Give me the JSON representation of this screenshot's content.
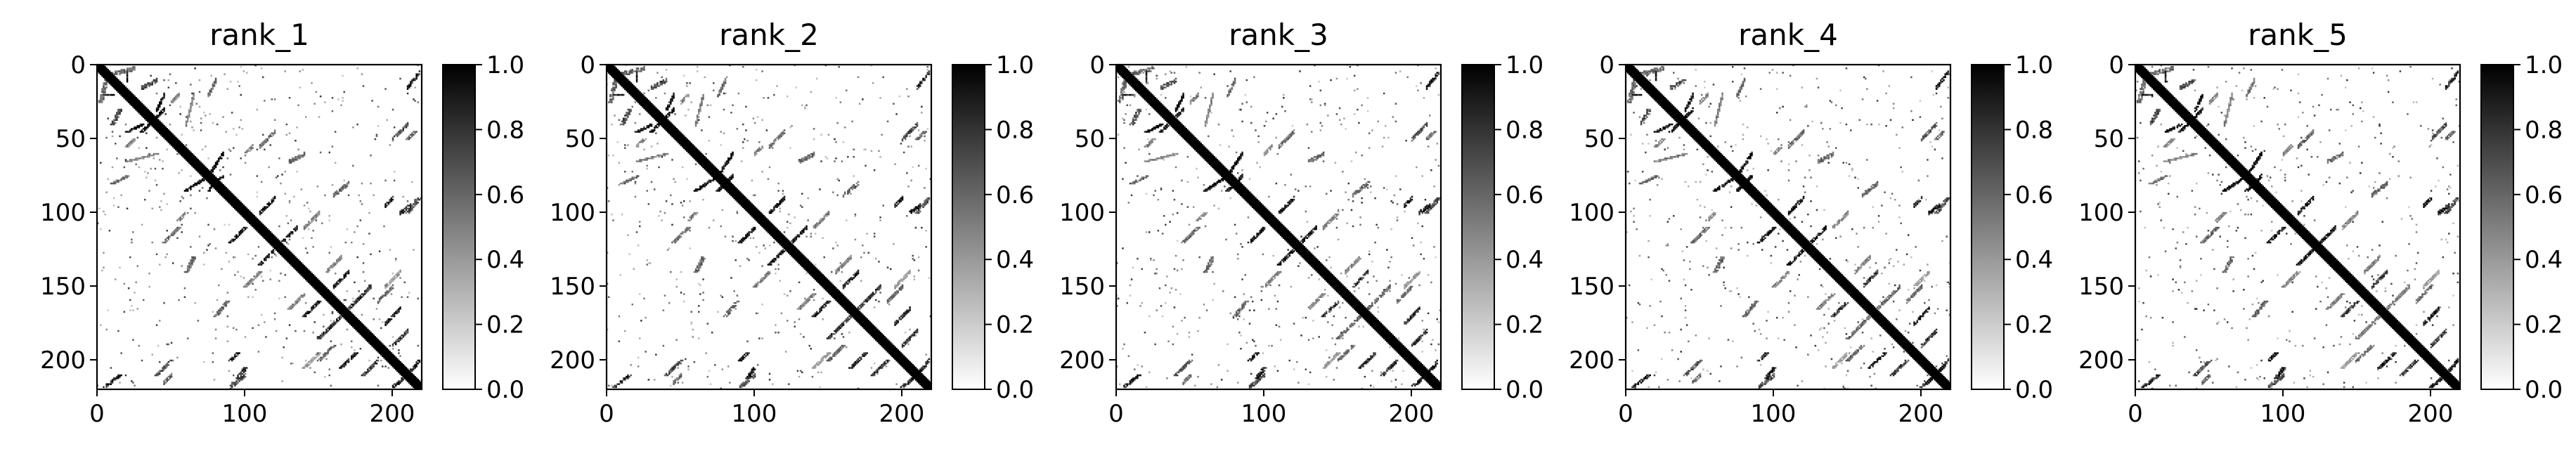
{
  "figure": {
    "background": "#ffffff"
  },
  "chart_data": [
    {
      "type": "heatmap",
      "title": "rank_1",
      "x_ticks": [
        0,
        100,
        200
      ],
      "y_ticks": [
        0,
        50,
        100,
        150,
        200
      ],
      "xlim": [
        0,
        220
      ],
      "ylim": [
        220,
        0
      ],
      "colorbar": {
        "range": [
          0,
          1
        ],
        "ticks": [
          "0.0",
          "0.2",
          "0.4",
          "0.6",
          "0.8",
          "1.0"
        ],
        "cmap": "Greys"
      },
      "n_residues": 220,
      "contacts": {
        "diagonal_width": 4,
        "segments": [
          [
            5,
            10,
            20,
            20,
            1.0
          ],
          [
            20,
            30,
            40,
            45,
            1.0
          ],
          [
            30,
            40,
            35,
            45,
            1.0
          ],
          [
            60,
            75,
            75,
            85,
            1.0
          ],
          [
            75,
            80,
            80,
            85,
            1.0
          ],
          [
            90,
            100,
            110,
            120,
            1.0
          ],
          [
            110,
            120,
            125,
            135,
            1.0
          ],
          [
            140,
            150,
            160,
            170,
            0.9
          ],
          [
            150,
            165,
            170,
            185,
            0.8
          ],
          [
            165,
            175,
            195,
            205,
            0.9
          ],
          [
            180,
            190,
            200,
            210,
            0.8
          ],
          [
            200,
            210,
            210,
            218,
            0.9
          ],
          [
            5,
            15,
            210,
            218,
            0.9
          ],
          [
            40,
            50,
            200,
            210,
            0.7
          ],
          [
            95,
            100,
            205,
            212,
            0.9
          ],
          [
            80,
            88,
            160,
            170,
            0.6
          ],
          [
            90,
            95,
            195,
            200,
            0.9
          ],
          [
            45,
            55,
            110,
            120,
            0.6
          ],
          [
            60,
            65,
            130,
            140,
            0.6
          ],
          [
            20,
            40,
            60,
            65,
            0.5
          ],
          [
            10,
            20,
            75,
            80,
            0.6
          ],
          [
            100,
            110,
            140,
            150,
            0.5
          ],
          [
            130,
            140,
            155,
            165,
            0.5
          ],
          [
            150,
            160,
            190,
            200,
            0.6
          ],
          [
            140,
            150,
            195,
            205,
            0.4
          ],
          [
            20,
            25,
            50,
            55,
            0.5
          ],
          [
            55,
            60,
            100,
            105,
            0.5
          ],
          [
            10,
            15,
            30,
            40,
            0.7
          ],
          [
            2,
            6,
            10,
            25,
            0.6
          ],
          [
            210,
            215,
            45,
            50,
            0.6
          ],
          [
            210,
            218,
            90,
            100,
            0.7
          ]
        ]
      }
    },
    {
      "type": "heatmap",
      "title": "rank_2",
      "x_ticks": [
        0,
        100,
        200
      ],
      "y_ticks": [
        0,
        50,
        100,
        150,
        200
      ],
      "xlim": [
        0,
        220
      ],
      "ylim": [
        220,
        0
      ],
      "colorbar": {
        "range": [
          0,
          1
        ],
        "ticks": [
          "0.0",
          "0.2",
          "0.4",
          "0.6",
          "0.8",
          "1.0"
        ],
        "cmap": "Greys"
      },
      "n_residues": 220,
      "contacts": {
        "diagonal_width": 4,
        "segments": [
          [
            5,
            10,
            20,
            20,
            1.0
          ],
          [
            20,
            30,
            40,
            45,
            1.0
          ],
          [
            30,
            40,
            35,
            45,
            1.0
          ],
          [
            60,
            75,
            75,
            85,
            1.0
          ],
          [
            75,
            80,
            80,
            85,
            1.0
          ],
          [
            90,
            100,
            110,
            120,
            1.0
          ],
          [
            110,
            120,
            125,
            135,
            1.0
          ],
          [
            140,
            150,
            160,
            170,
            0.9
          ],
          [
            150,
            165,
            170,
            185,
            0.8
          ],
          [
            165,
            175,
            195,
            205,
            0.9
          ],
          [
            180,
            190,
            200,
            210,
            0.8
          ],
          [
            200,
            210,
            210,
            218,
            0.9
          ],
          [
            5,
            15,
            210,
            218,
            0.9
          ],
          [
            40,
            50,
            200,
            210,
            0.7
          ],
          [
            95,
            100,
            205,
            212,
            0.9
          ],
          [
            80,
            88,
            160,
            170,
            0.6
          ],
          [
            90,
            95,
            195,
            200,
            0.9
          ],
          [
            45,
            55,
            110,
            120,
            0.6
          ],
          [
            60,
            65,
            130,
            140,
            0.6
          ],
          [
            20,
            40,
            60,
            65,
            0.5
          ],
          [
            10,
            20,
            75,
            80,
            0.6
          ],
          [
            100,
            110,
            140,
            150,
            0.5
          ],
          [
            130,
            140,
            155,
            165,
            0.5
          ],
          [
            150,
            160,
            190,
            200,
            0.6
          ],
          [
            140,
            150,
            195,
            205,
            0.4
          ],
          [
            20,
            25,
            50,
            55,
            0.5
          ],
          [
            55,
            60,
            100,
            105,
            0.5
          ],
          [
            10,
            15,
            30,
            40,
            0.7
          ],
          [
            2,
            6,
            10,
            25,
            0.6
          ],
          [
            210,
            215,
            45,
            50,
            0.6
          ],
          [
            210,
            218,
            90,
            100,
            0.7
          ]
        ]
      }
    },
    {
      "type": "heatmap",
      "title": "rank_3",
      "x_ticks": [
        0,
        100,
        200
      ],
      "y_ticks": [
        0,
        50,
        100,
        150,
        200
      ],
      "xlim": [
        0,
        220
      ],
      "ylim": [
        220,
        0
      ],
      "colorbar": {
        "range": [
          0,
          1
        ],
        "ticks": [
          "0.0",
          "0.2",
          "0.4",
          "0.6",
          "0.8",
          "1.0"
        ],
        "cmap": "Greys"
      },
      "n_residues": 220,
      "contacts": {
        "diagonal_width": 4,
        "segments": [
          [
            5,
            10,
            20,
            20,
            1.0
          ],
          [
            20,
            30,
            40,
            45,
            1.0
          ],
          [
            30,
            40,
            35,
            45,
            1.0
          ],
          [
            60,
            75,
            75,
            85,
            1.0
          ],
          [
            75,
            80,
            80,
            85,
            1.0
          ],
          [
            90,
            100,
            110,
            120,
            1.0
          ],
          [
            110,
            120,
            125,
            135,
            1.0
          ],
          [
            140,
            150,
            160,
            170,
            0.8
          ],
          [
            150,
            165,
            170,
            185,
            0.6
          ],
          [
            165,
            175,
            195,
            205,
            0.9
          ],
          [
            180,
            190,
            200,
            210,
            0.8
          ],
          [
            200,
            210,
            210,
            218,
            0.9
          ],
          [
            5,
            15,
            210,
            218,
            0.9
          ],
          [
            40,
            50,
            200,
            210,
            0.7
          ],
          [
            95,
            100,
            205,
            212,
            0.9
          ],
          [
            80,
            88,
            160,
            170,
            0.6
          ],
          [
            90,
            95,
            195,
            200,
            0.9
          ],
          [
            45,
            55,
            110,
            120,
            0.6
          ],
          [
            60,
            65,
            130,
            140,
            0.6
          ],
          [
            20,
            40,
            60,
            65,
            0.5
          ],
          [
            10,
            20,
            75,
            80,
            0.6
          ],
          [
            100,
            110,
            140,
            150,
            0.5
          ],
          [
            130,
            140,
            155,
            165,
            0.5
          ],
          [
            150,
            160,
            190,
            200,
            0.6
          ],
          [
            140,
            150,
            195,
            205,
            0.4
          ],
          [
            20,
            25,
            50,
            55,
            0.5
          ],
          [
            55,
            60,
            100,
            105,
            0.5
          ],
          [
            10,
            15,
            30,
            40,
            0.7
          ],
          [
            2,
            6,
            10,
            25,
            0.6
          ],
          [
            210,
            215,
            45,
            50,
            0.6
          ],
          [
            210,
            218,
            90,
            100,
            0.7
          ]
        ]
      }
    },
    {
      "type": "heatmap",
      "title": "rank_4",
      "x_ticks": [
        0,
        100,
        200
      ],
      "y_ticks": [
        0,
        50,
        100,
        150,
        200
      ],
      "xlim": [
        0,
        220
      ],
      "ylim": [
        220,
        0
      ],
      "colorbar": {
        "range": [
          0,
          1
        ],
        "ticks": [
          "0.0",
          "0.2",
          "0.4",
          "0.6",
          "0.8",
          "1.0"
        ],
        "cmap": "Greys"
      },
      "n_residues": 220,
      "contacts": {
        "diagonal_width": 4,
        "segments": [
          [
            5,
            10,
            20,
            20,
            1.0
          ],
          [
            20,
            30,
            40,
            45,
            1.0
          ],
          [
            30,
            40,
            35,
            45,
            1.0
          ],
          [
            60,
            75,
            75,
            85,
            1.0
          ],
          [
            75,
            80,
            80,
            85,
            1.0
          ],
          [
            90,
            100,
            110,
            120,
            1.0
          ],
          [
            110,
            120,
            125,
            135,
            1.0
          ],
          [
            140,
            150,
            160,
            170,
            0.8
          ],
          [
            150,
            165,
            170,
            185,
            0.6
          ],
          [
            165,
            175,
            195,
            205,
            0.9
          ],
          [
            180,
            190,
            200,
            210,
            0.8
          ],
          [
            200,
            210,
            210,
            218,
            0.9
          ],
          [
            5,
            15,
            210,
            218,
            0.9
          ],
          [
            40,
            50,
            200,
            210,
            0.7
          ],
          [
            95,
            100,
            205,
            212,
            0.9
          ],
          [
            80,
            88,
            160,
            170,
            0.6
          ],
          [
            90,
            95,
            195,
            200,
            0.9
          ],
          [
            45,
            55,
            110,
            120,
            0.6
          ],
          [
            60,
            65,
            130,
            140,
            0.6
          ],
          [
            20,
            40,
            60,
            65,
            0.5
          ],
          [
            10,
            20,
            75,
            80,
            0.6
          ],
          [
            100,
            110,
            140,
            150,
            0.5
          ],
          [
            130,
            140,
            155,
            165,
            0.5
          ],
          [
            150,
            160,
            190,
            200,
            0.6
          ],
          [
            140,
            150,
            195,
            205,
            0.4
          ],
          [
            20,
            25,
            50,
            55,
            0.5
          ],
          [
            55,
            60,
            100,
            105,
            0.5
          ],
          [
            10,
            15,
            30,
            40,
            0.7
          ],
          [
            2,
            6,
            10,
            25,
            0.6
          ],
          [
            210,
            215,
            45,
            50,
            0.6
          ],
          [
            210,
            218,
            90,
            100,
            0.7
          ]
        ]
      }
    },
    {
      "type": "heatmap",
      "title": "rank_5",
      "x_ticks": [
        0,
        100,
        200
      ],
      "y_ticks": [
        0,
        50,
        100,
        150,
        200
      ],
      "xlim": [
        0,
        220
      ],
      "ylim": [
        220,
        0
      ],
      "colorbar": {
        "range": [
          0,
          1
        ],
        "ticks": [
          "0.0",
          "0.2",
          "0.4",
          "0.6",
          "0.8",
          "1.0"
        ],
        "cmap": "Greys"
      },
      "n_residues": 220,
      "contacts": {
        "diagonal_width": 4,
        "segments": [
          [
            5,
            10,
            20,
            20,
            1.0
          ],
          [
            20,
            30,
            40,
            45,
            1.0
          ],
          [
            30,
            40,
            35,
            45,
            1.0
          ],
          [
            60,
            75,
            75,
            85,
            1.0
          ],
          [
            75,
            80,
            80,
            85,
            1.0
          ],
          [
            90,
            100,
            110,
            120,
            1.0
          ],
          [
            110,
            120,
            125,
            135,
            1.0
          ],
          [
            140,
            150,
            160,
            170,
            0.8
          ],
          [
            150,
            165,
            170,
            185,
            0.5
          ],
          [
            165,
            175,
            195,
            205,
            0.9
          ],
          [
            180,
            190,
            200,
            210,
            0.8
          ],
          [
            200,
            210,
            210,
            218,
            0.9
          ],
          [
            5,
            15,
            210,
            218,
            0.9
          ],
          [
            40,
            50,
            200,
            210,
            0.7
          ],
          [
            95,
            100,
            205,
            212,
            0.9
          ],
          [
            80,
            88,
            160,
            170,
            0.6
          ],
          [
            90,
            95,
            195,
            200,
            0.9
          ],
          [
            45,
            55,
            110,
            120,
            0.6
          ],
          [
            60,
            65,
            130,
            140,
            0.6
          ],
          [
            20,
            40,
            60,
            65,
            0.5
          ],
          [
            10,
            20,
            75,
            80,
            0.6
          ],
          [
            100,
            110,
            140,
            150,
            0.5
          ],
          [
            130,
            140,
            155,
            165,
            0.5
          ],
          [
            150,
            160,
            190,
            200,
            0.6
          ],
          [
            140,
            150,
            195,
            205,
            0.4
          ],
          [
            20,
            25,
            50,
            55,
            0.5
          ],
          [
            55,
            60,
            100,
            105,
            0.5
          ],
          [
            10,
            15,
            30,
            40,
            0.7
          ],
          [
            2,
            6,
            10,
            25,
            0.6
          ],
          [
            210,
            215,
            45,
            50,
            0.6
          ],
          [
            210,
            218,
            90,
            100,
            0.7
          ]
        ]
      }
    }
  ]
}
